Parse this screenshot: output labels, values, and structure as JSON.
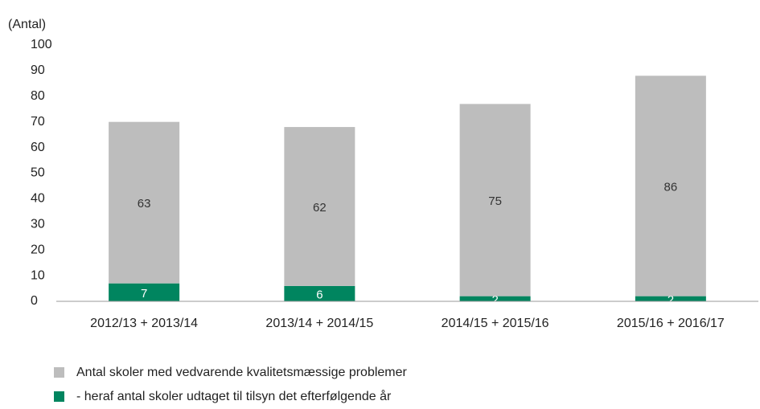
{
  "chart_data": {
    "type": "stacked_bar",
    "y_label": "(Antal)",
    "categories": [
      "2012/13 + 2013/14",
      "2013/14 + 2014/15",
      "2014/15 + 2015/16",
      "2015/16 + 2016/17"
    ],
    "series": [
      {
        "name": "Antal skoler med vedvarende kvalitetsmæssige problemer",
        "color": "#bdbdbd",
        "label_color": "#333333",
        "values": [
          63,
          62,
          75,
          86
        ]
      },
      {
        "name": "- heraf antal skoler udtaget til tilsyn det efterfølgende år",
        "color": "#00855f",
        "label_color": "#ffffff",
        "values": [
          7,
          6,
          2,
          2
        ]
      }
    ],
    "ylim": [
      0,
      100
    ],
    "yticks": [
      0,
      10,
      20,
      30,
      40,
      50,
      60,
      70,
      80,
      90,
      100
    ],
    "grid": false
  }
}
